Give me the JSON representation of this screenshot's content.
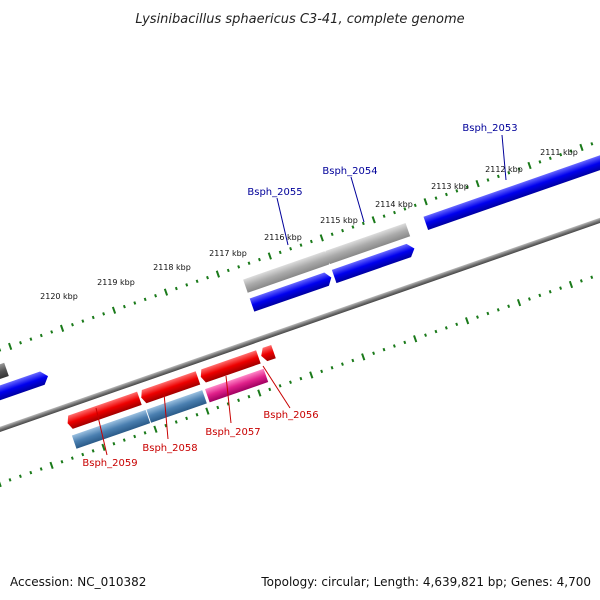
{
  "title": "Lysinibacillus sphaericus C3-41, complete genome",
  "footer": {
    "accession": "Accession: NC_010382",
    "topology": "Topology: circular; Length: 4,639,821 bp; Genes: 4,700"
  },
  "ticks": [
    "2111 kbp",
    "2112 kbp",
    "2113 kbp",
    "2114 kbp",
    "2115 kbp",
    "2116 kbp",
    "2117 kbp",
    "2118 kbp",
    "2119 kbp",
    "2120 kbp"
  ],
  "genes_upper": [
    "Bsph_2053",
    "Bsph_2054",
    "Bsph_2055"
  ],
  "genes_lower": [
    "Bsph_2056",
    "Bsph_2057",
    "Bsph_2058",
    "Bsph_2059"
  ],
  "colors": {
    "upper_label": "#00009a",
    "lower_label": "#c80000",
    "tick": "#1a7a1a",
    "backbone": "#777777",
    "gene_blue": "#0000ee",
    "gene_gray": "#aaaaaa",
    "gene_red": "#ee0000",
    "gene_steel": "#4a7fb0",
    "gene_pink": "#e0208a",
    "gene_dark": "#555555"
  }
}
